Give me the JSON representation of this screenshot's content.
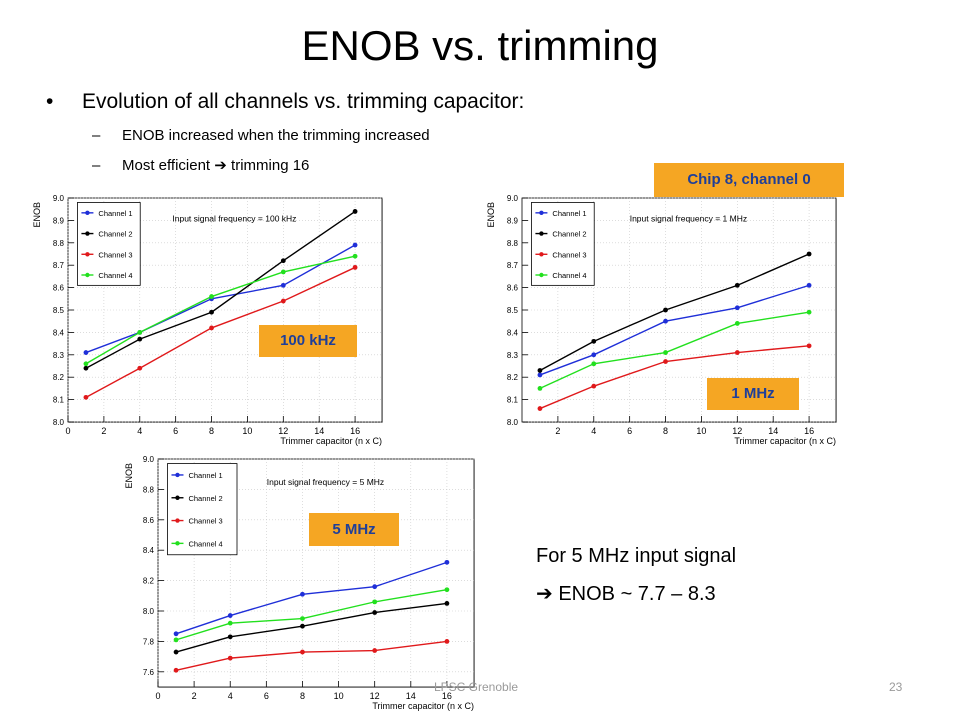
{
  "slide": {
    "title": "ENOB vs. trimming",
    "bullet": "Evolution of all channels vs. trimming capacitor:",
    "sub_bullets": [
      "ENOB increased when the trimming increased",
      "Most efficient",
      "trimming 16"
    ],
    "arrow_glyph": "➔",
    "tags": {
      "top_right": "Chip 8, channel 0"
    },
    "summary_line1": "For 5 MHz input signal",
    "summary_line2": "ENOB ~ 7.7 – 8.3",
    "footer_center": "LPSC Grenoble",
    "page_number": "23"
  },
  "colors": {
    "channel_1": "#1f2fd8",
    "channel_2": "#000000",
    "channel_3": "#e0191b",
    "channel_4": "#22e01e",
    "tag_bg": "#f5a623",
    "tag_text": "#1f3f99"
  },
  "chart_data": [
    {
      "type": "line",
      "tag": "100 kHz",
      "annotation": "Input signal frequency = 100 kHz",
      "ylabel": "ENOB",
      "xlabel": "Trimmer capacitor (n x C)",
      "xlim": [
        0,
        17.5
      ],
      "ylim": [
        8.0,
        9.0
      ],
      "x_ticks": [
        0,
        2,
        4,
        6,
        8,
        10,
        12,
        14,
        16
      ],
      "y_ticks": [
        8.0,
        8.1,
        8.2,
        8.3,
        8.4,
        8.5,
        8.6,
        8.7,
        8.8,
        8.9,
        9.0
      ],
      "x_tick_labels": [
        "0",
        "2",
        "4",
        "6",
        "8",
        "10",
        "12",
        "14",
        "16"
      ],
      "y_tick_labels": [
        "8.0",
        "8.1",
        "8.2",
        "8.3",
        "8.4",
        "8.5",
        "8.6",
        "8.7",
        "8.8",
        "8.9",
        "9.0"
      ],
      "legend_position": "top-left",
      "grid": true,
      "x": [
        1,
        4,
        8,
        12,
        16
      ],
      "series": [
        {
          "name": "Channel 1",
          "values": [
            8.31,
            8.4,
            8.55,
            8.61,
            8.79
          ]
        },
        {
          "name": "Channel 2",
          "values": [
            8.24,
            8.37,
            8.49,
            8.72,
            8.94
          ]
        },
        {
          "name": "Channel 3",
          "values": [
            8.11,
            8.24,
            8.42,
            8.54,
            8.69
          ]
        },
        {
          "name": "Channel 4",
          "values": [
            8.26,
            8.4,
            8.56,
            8.67,
            8.74
          ]
        }
      ]
    },
    {
      "type": "line",
      "tag": "1 MHz",
      "annotation": "Input signal frequency = 1 MHz",
      "ylabel": "ENOB",
      "xlabel": "Trimmer capacitor (n x C)",
      "xlim": [
        0,
        17.5
      ],
      "ylim": [
        8.0,
        9.0
      ],
      "x_ticks": [
        2,
        4,
        6,
        8,
        10,
        12,
        14,
        16
      ],
      "y_ticks": [
        8.0,
        8.1,
        8.2,
        8.3,
        8.4,
        8.5,
        8.6,
        8.7,
        8.8,
        8.9,
        9.0
      ],
      "x_tick_labels": [
        "2",
        "4",
        "6",
        "8",
        "10",
        "12",
        "14",
        "16"
      ],
      "y_tick_labels": [
        "8.0",
        "8.1",
        "8.2",
        "8.3",
        "8.4",
        "8.5",
        "8.6",
        "8.7",
        "8.8",
        "8.9",
        "9.0"
      ],
      "legend_position": "top-left",
      "grid": true,
      "x": [
        1,
        4,
        8,
        12,
        16
      ],
      "series": [
        {
          "name": "Channel 1",
          "values": [
            8.21,
            8.3,
            8.45,
            8.51,
            8.61
          ]
        },
        {
          "name": "Channel 2",
          "values": [
            8.23,
            8.36,
            8.5,
            8.61,
            8.75
          ]
        },
        {
          "name": "Channel 3",
          "values": [
            8.06,
            8.16,
            8.27,
            8.31,
            8.34
          ]
        },
        {
          "name": "Channel 4",
          "values": [
            8.15,
            8.26,
            8.31,
            8.44,
            8.49
          ]
        }
      ]
    },
    {
      "type": "line",
      "tag": "5 MHz",
      "annotation": "Input signal frequency = 5 MHz",
      "ylabel": "ENOB",
      "xlabel": "Trimmer capacitor (n x C)",
      "xlim": [
        0,
        17.5
      ],
      "ylim": [
        7.5,
        9.0
      ],
      "x_ticks": [
        0,
        2,
        4,
        6,
        8,
        10,
        12,
        14,
        16
      ],
      "y_ticks": [
        7.6,
        7.8,
        8.0,
        8.2,
        8.4,
        8.6,
        8.8,
        9.0
      ],
      "x_tick_labels": [
        "0",
        "2",
        "4",
        "6",
        "8",
        "10",
        "12",
        "14",
        "16"
      ],
      "y_tick_labels": [
        "7.6",
        "7.8",
        "8.0",
        "8.2",
        "8.4",
        "8.6",
        "8.8",
        "9.0"
      ],
      "legend_position": "top-left",
      "grid": true,
      "x": [
        1,
        4,
        8,
        12,
        16
      ],
      "series": [
        {
          "name": "Channel 1",
          "values": [
            7.85,
            7.97,
            8.11,
            8.16,
            8.32
          ]
        },
        {
          "name": "Channel 2",
          "values": [
            7.73,
            7.83,
            7.9,
            7.99,
            8.05
          ]
        },
        {
          "name": "Channel 3",
          "values": [
            7.61,
            7.69,
            7.73,
            7.74,
            7.8
          ]
        },
        {
          "name": "Channel 4",
          "values": [
            7.81,
            7.92,
            7.95,
            8.06,
            8.14
          ]
        }
      ]
    }
  ]
}
